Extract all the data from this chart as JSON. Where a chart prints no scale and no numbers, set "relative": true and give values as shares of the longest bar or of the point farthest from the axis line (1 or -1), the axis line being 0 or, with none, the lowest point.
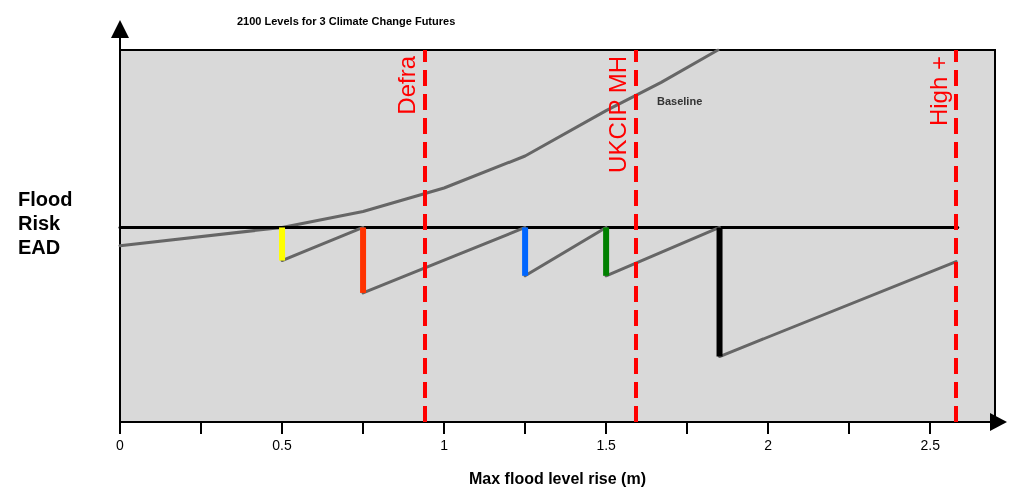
{
  "chart_data": {
    "type": "line",
    "title": "2100 Levels for 3 Climate Change Futures",
    "xlabel": "Max flood level rise (m)",
    "ylabel": "Flood\nRisk\nEAD",
    "relative": true,
    "xlim": [
      0,
      2.7
    ],
    "xticks": [
      0,
      {
        "value": 0.25,
        "label": null
      },
      0.5,
      {
        "value": 0.75,
        "label": null
      },
      1,
      {
        "value": 1.25,
        "label": null
      },
      1.5,
      {
        "value": 1.75,
        "label": null
      },
      2,
      {
        "value": 2.25,
        "label": null
      },
      2.5
    ],
    "grid": false,
    "marker": "none",
    "line_style": "solid",
    "series": [
      {
        "color": "#666666",
        "x": [
          0,
          0.5,
          0.75,
          1,
          1.25,
          1.5,
          1.67,
          1.845
        ],
        "values": [
          0.474,
          0.523,
          0.566,
          0.629,
          0.715,
          0.837,
          0.913,
          1.0
        ]
      },
      {
        "color": "#000000",
        "x": [
          0,
          2.585
        ],
        "values": [
          0.523,
          0.523
        ]
      },
      {
        "color": "#666666",
        "x": [
          0.5,
          0.75
        ],
        "values": [
          0.434,
          0.523
        ]
      },
      {
        "color": "#666666",
        "x": [
          0.75,
          1.25
        ],
        "values": [
          0.347,
          0.523
        ]
      },
      {
        "color": "#666666",
        "x": [
          1.25,
          1.5
        ],
        "values": [
          0.393,
          0.523
        ]
      },
      {
        "color": "#666666",
        "x": [
          1.5,
          1.85
        ],
        "values": [
          0.393,
          0.523
        ]
      },
      {
        "color": "#666666",
        "x": [
          1.85,
          2.58
        ],
        "values": [
          0.176,
          0.431
        ]
      },
      {
        "color": "#ffff00",
        "x": [
          0.5,
          0.5
        ],
        "values": [
          0.523,
          0.434
        ]
      },
      {
        "color": "#ff3300",
        "x": [
          0.75,
          0.75
        ],
        "values": [
          0.523,
          0.347
        ]
      },
      {
        "color": "#0066ff",
        "x": [
          1.25,
          1.25
        ],
        "values": [
          0.523,
          0.393
        ]
      },
      {
        "color": "#008000",
        "x": [
          1.5,
          1.5
        ],
        "values": [
          0.523,
          0.393
        ]
      },
      {
        "color": "#000000",
        "x": [
          1.85,
          1.85
        ],
        "values": [
          0.523,
          0.176
        ]
      }
    ],
    "ref_lines": [
      {
        "axis": "x",
        "value": 0.944,
        "label": "Defra",
        "color": "#ff0000",
        "line_style": "dashed"
      },
      {
        "axis": "x",
        "value": 1.588,
        "label": "UKCIP MH",
        "color": "#ff0000",
        "line_style": "dashed"
      },
      {
        "axis": "x",
        "value": 2.579,
        "label": "High +",
        "color": "#ff0000",
        "line_style": "dashed"
      }
    ],
    "annotations": [
      "Baseline"
    ]
  }
}
